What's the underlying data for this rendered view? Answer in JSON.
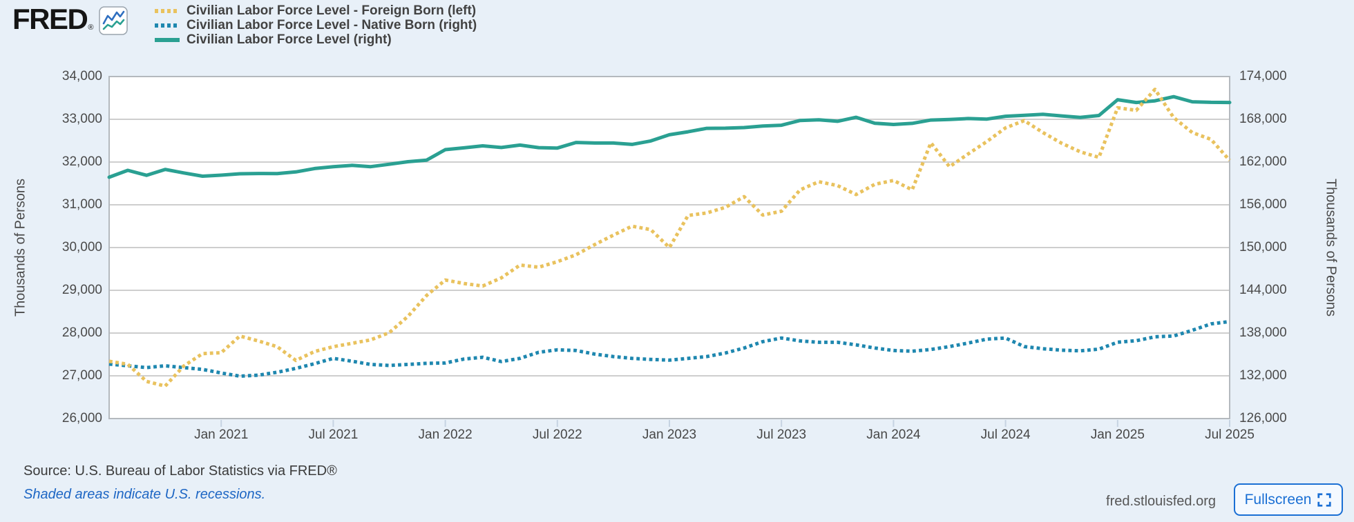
{
  "header": {
    "logo_text": "FRED",
    "logo_registered": "®",
    "legend": [
      {
        "label": "Civilian Labor Force Level - Foreign Born (left)",
        "color": "#e9c25e",
        "style": "dotted"
      },
      {
        "label": "Civilian Labor Force Level - Native Born (right)",
        "color": "#1e87af",
        "style": "dotted"
      },
      {
        "label": "Civilian Labor Force Level (right)",
        "color": "#2aa092",
        "style": "solid"
      }
    ]
  },
  "footer": {
    "source_text": "Source: U.S. Bureau of Labor Statistics via FRED®",
    "recession_note": "Shaded areas indicate U.S. recessions.",
    "site_url": "fred.stlouisfed.org",
    "fullscreen_label": "Fullscreen"
  },
  "chart_data": {
    "type": "line",
    "frequency": "monthly",
    "start_month": "2020-07",
    "end_month": "2025-07",
    "grid": true,
    "left_axis": {
      "label": "Thousands of Persons",
      "min": 26000,
      "max": 34000,
      "step": 1000,
      "tick_labels": [
        "34,000",
        "33,000",
        "32,000",
        "31,000",
        "30,000",
        "29,000",
        "28,000",
        "27,000",
        "26,000"
      ]
    },
    "right_axis": {
      "label": "Thousands of Persons",
      "min": 126000,
      "max": 174000,
      "step": 6000,
      "tick_labels": [
        "174,000",
        "168,000",
        "162,000",
        "156,000",
        "150,000",
        "144,000",
        "138,000",
        "132,000",
        "126,000"
      ]
    },
    "x_axis": {
      "ticks": [
        {
          "index": 6,
          "label": "Jan 2021"
        },
        {
          "index": 12,
          "label": "Jul 2021"
        },
        {
          "index": 18,
          "label": "Jan 2022"
        },
        {
          "index": 24,
          "label": "Jul 2022"
        },
        {
          "index": 30,
          "label": "Jan 2023"
        },
        {
          "index": 36,
          "label": "Jul 2023"
        },
        {
          "index": 42,
          "label": "Jan 2024"
        },
        {
          "index": 48,
          "label": "Jul 2024"
        },
        {
          "index": 54,
          "label": "Jan 2025"
        },
        {
          "index": 60,
          "label": "Jul 2025"
        }
      ]
    },
    "series": [
      {
        "id": "foreign_born",
        "name": "Civilian Labor Force Level - Foreign Born",
        "axis": "left",
        "color": "#e9c25e",
        "style": "dotted",
        "values": [
          27340,
          27270,
          26870,
          26760,
          27230,
          27520,
          27540,
          27930,
          27815,
          27680,
          27360,
          27570,
          27680,
          27760,
          27840,
          28010,
          28390,
          28880,
          29240,
          29160,
          29100,
          29290,
          29590,
          29540,
          29670,
          29830,
          30070,
          30290,
          30500,
          30420,
          30000,
          30750,
          30810,
          30940,
          31190,
          30760,
          30850,
          31350,
          31540,
          31450,
          31240,
          31480,
          31570,
          31350,
          32450,
          31890,
          32190,
          32480,
          32800,
          32970,
          32690,
          32440,
          32240,
          32110,
          33270,
          33210,
          33700,
          33040,
          32690,
          32530,
          32040
        ]
      },
      {
        "id": "native_born",
        "name": "Civilian Labor Force Level - Native Born",
        "axis": "right",
        "color": "#1e87af",
        "style": "dotted",
        "values": [
          133650,
          133400,
          133150,
          133400,
          133150,
          132900,
          132400,
          131950,
          132100,
          132500,
          133050,
          133700,
          134450,
          134050,
          133600,
          133450,
          133600,
          133750,
          133800,
          134350,
          134600,
          134000,
          134450,
          135300,
          135650,
          135550,
          135050,
          134700,
          134450,
          134300,
          134200,
          134450,
          134700,
          135200,
          135900,
          136800,
          137300,
          136900,
          136700,
          136700,
          136350,
          135900,
          135550,
          135450,
          135700,
          136100,
          136600,
          137150,
          137300,
          136100,
          135800,
          135600,
          135500,
          135750,
          136710,
          136930,
          137480,
          137580,
          138390,
          139290,
          139620
        ]
      },
      {
        "id": "total",
        "name": "Civilian Labor Force Level",
        "axis": "right",
        "color": "#2aa092",
        "style": "solid",
        "values": [
          159870,
          160838,
          160143,
          160966,
          160467,
          160017,
          160161,
          160353,
          160397,
          160379,
          160614,
          161086,
          161347,
          161537,
          161354,
          161691,
          162052,
          162271,
          163743,
          163991,
          164274,
          164046,
          164376,
          164023,
          163960,
          164746,
          164667,
          164667,
          164481,
          164966,
          165832,
          166251,
          166731,
          166752,
          166843,
          167047,
          167163,
          167839,
          167930,
          167723,
          168278,
          167451,
          167276,
          167426,
          167895,
          167982,
          168109,
          168029,
          168429,
          168549,
          168699,
          168479,
          168267,
          168535,
          170744,
          170357,
          170591,
          171171,
          170459,
          170380,
          170366
        ]
      }
    ]
  }
}
